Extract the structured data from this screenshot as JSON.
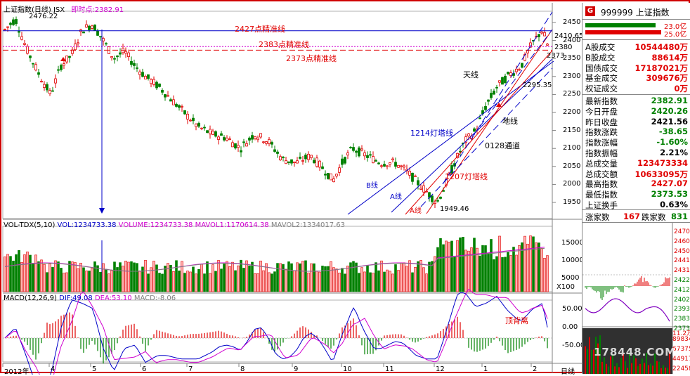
{
  "header": {
    "title": "上证指数(日线) JSX",
    "instant_label": "即时点:",
    "instant_value": "2382.91"
  },
  "main_chart": {
    "price_axis": [
      "2450",
      "2400",
      "2350",
      "2300",
      "2250",
      "2200",
      "2150",
      "2100",
      "2050",
      "2000",
      "1950"
    ],
    "high_label": "2476.22",
    "low_label": "1949.46",
    "last_label": "2410.65",
    "label_2380": "2380",
    "label_2373": "2373",
    "label_2295": "2295.35",
    "lines": {
      "l2427": "2427点精准线",
      "l2383": "2383点精准线",
      "l2373": "2373点精准线"
    },
    "annotations": {
      "tianxian": "天线",
      "dixian": "地线",
      "line1214": "1214灯塔线",
      "line1207": "1207灯塔线",
      "channel0128": "0128通道",
      "bline": "B线",
      "aline1": "A线",
      "aline2": "A线"
    }
  },
  "volume_chart": {
    "header_name": "VOL-TDX(5,10)",
    "vol_label": "VOL:",
    "vol_value": "1234733.38",
    "volume_label": "VOLUME:",
    "volume_value": "1234733.38",
    "mavol1_label": "MAVOL1:",
    "mavol1_value": "1170614.38",
    "mavol2_label": "MAVOL2:",
    "mavol2_value": "1334017.63",
    "axis": [
      "15000",
      "10000",
      "5000"
    ],
    "unit": "X100"
  },
  "macd_chart": {
    "header_name": "MACD(12,26,9)",
    "dif_label": "DIF:",
    "dif_value": "49.08",
    "dea_label": "DEA:",
    "dea_value": "53.10",
    "macd_label": "MACD:",
    "macd_value": "-8.06",
    "axis": [
      "50.00",
      "0.00",
      "-50.00"
    ],
    "annotation": "顶背离"
  },
  "time_axis": {
    "labels": [
      "2012年",
      "4",
      "5",
      "6",
      "7",
      "8",
      "9",
      "10",
      "11",
      "12",
      "1",
      "2"
    ],
    "period_label": "日线"
  },
  "panel": {
    "badge": "G",
    "code": "999999",
    "name": "上证指数",
    "bar1_value": "23.0亿",
    "bar2_value": "25.0亿",
    "rows_a": [
      {
        "label": "A股成交",
        "value": "10544480万",
        "color": "#e00000"
      },
      {
        "label": "B股成交",
        "value": "88614万",
        "color": "#e00000"
      },
      {
        "label": "国债成交",
        "value": "17187021万",
        "color": "#e00000"
      },
      {
        "label": "基金成交",
        "value": "309676万",
        "color": "#e00000"
      },
      {
        "label": "权证成交",
        "value": "0万",
        "color": "#e00000"
      }
    ],
    "rows_b": [
      {
        "label": "最新指数",
        "value": "2382.91",
        "color": "#008000"
      },
      {
        "label": "今日开盘",
        "value": "2420.26",
        "color": "#008000"
      },
      {
        "label": "昨日收盘",
        "value": "2421.56",
        "color": "#000000"
      },
      {
        "label": "指数涨跌",
        "value": "-38.65",
        "color": "#008000"
      },
      {
        "label": "指数涨幅",
        "value": "-1.60%",
        "color": "#008000"
      },
      {
        "label": "指数振幅",
        "value": "2.21%",
        "color": "#000000"
      },
      {
        "label": "总成交量",
        "value": "123473334",
        "color": "#e00000"
      },
      {
        "label": "总成交额",
        "value": "10633095万",
        "color": "#e00000"
      },
      {
        "label": "最高指数",
        "value": "2427.07",
        "color": "#e00000"
      },
      {
        "label": "最低指数",
        "value": "2373.53",
        "color": "#008000"
      },
      {
        "label": "上证换手",
        "value": "0.63%",
        "color": "#000000"
      }
    ],
    "up_label": "涨家数",
    "up_value": "167",
    "down_label": "跌家数",
    "down_value": "831",
    "mini_axis": [
      "2470",
      "2460",
      "2450",
      "2441",
      "2431",
      "2422",
      "2412",
      "2402",
      "2393",
      "2383",
      "2373"
    ],
    "mini_vol": "11.2万",
    "mini_vol_axis": [
      "89834",
      "67375",
      "44917",
      "22458"
    ],
    "watermark": "178448.COM"
  },
  "colors": {
    "up": "#e00000",
    "down": "#008000",
    "frame": "#d00000",
    "blue": "#0000c8"
  }
}
